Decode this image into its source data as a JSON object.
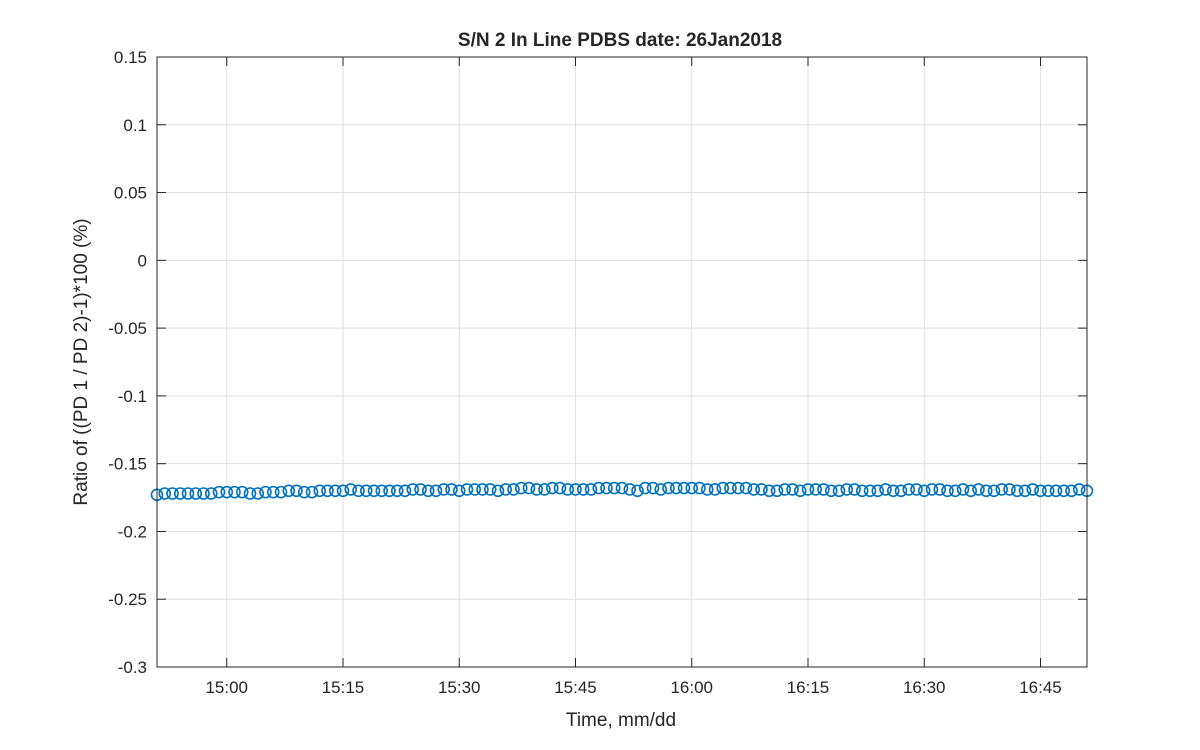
{
  "chart_data": {
    "type": "scatter",
    "title": "S/N 2 In Line PDBS date: 26Jan2018",
    "xlabel": "Time, mm/dd",
    "ylabel": "Ratio of ((PD 1 / PD 2)-1)*100 (%)",
    "xlim": [
      "14:51",
      "16:51"
    ],
    "ylim": [
      -0.3,
      0.15
    ],
    "grid": true,
    "marker": "open-circle",
    "marker_color": "#0072BD",
    "xticks": [
      "15:00",
      "15:15",
      "15:30",
      "15:45",
      "16:00",
      "16:15",
      "16:30",
      "16:45"
    ],
    "yticks": [
      "0.15",
      "0.1",
      "0.05",
      "0",
      "-0.05",
      "-0.1",
      "-0.15",
      "-0.2",
      "-0.25",
      "-0.3"
    ],
    "series": [
      {
        "x": [
          "14:51",
          "14:52",
          "14:53",
          "14:54",
          "14:55",
          "14:56",
          "14:57",
          "14:58",
          "14:59",
          "15:00",
          "15:01",
          "15:02",
          "15:03",
          "15:04",
          "15:05",
          "15:06",
          "15:07",
          "15:08",
          "15:09",
          "15:10",
          "15:11",
          "15:12",
          "15:13",
          "15:14",
          "15:15",
          "15:16",
          "15:17",
          "15:18",
          "15:19",
          "15:20",
          "15:21",
          "15:22",
          "15:23",
          "15:24",
          "15:25",
          "15:26",
          "15:27",
          "15:28",
          "15:29",
          "15:30",
          "15:31",
          "15:32",
          "15:33",
          "15:34",
          "15:35",
          "15:36",
          "15:37",
          "15:38",
          "15:39",
          "15:40",
          "15:41",
          "15:42",
          "15:43",
          "15:44",
          "15:45",
          "15:46",
          "15:47",
          "15:48",
          "15:49",
          "15:50",
          "15:51",
          "15:52",
          "15:53",
          "15:54",
          "15:55",
          "15:56",
          "15:57",
          "15:58",
          "15:59",
          "16:00",
          "16:01",
          "16:02",
          "16:03",
          "16:04",
          "16:05",
          "16:06",
          "16:07",
          "16:08",
          "16:09",
          "16:10",
          "16:11",
          "16:12",
          "16:13",
          "16:14",
          "16:15",
          "16:16",
          "16:17",
          "16:18",
          "16:19",
          "16:20",
          "16:21",
          "16:22",
          "16:23",
          "16:24",
          "16:25",
          "16:26",
          "16:27",
          "16:28",
          "16:29",
          "16:30",
          "16:31",
          "16:32",
          "16:33",
          "16:34",
          "16:35",
          "16:36",
          "16:37",
          "16:38",
          "16:39",
          "16:40",
          "16:41",
          "16:42",
          "16:43",
          "16:44",
          "16:45",
          "16:46",
          "16:47",
          "16:48",
          "16:49",
          "16:50",
          "16:51"
        ],
        "y": [
          -0.173,
          -0.172,
          -0.172,
          -0.172,
          -0.172,
          -0.172,
          -0.172,
          -0.172,
          -0.171,
          -0.171,
          -0.171,
          -0.171,
          -0.172,
          -0.172,
          -0.171,
          -0.171,
          -0.171,
          -0.17,
          -0.17,
          -0.171,
          -0.171,
          -0.17,
          -0.17,
          -0.17,
          -0.17,
          -0.169,
          -0.17,
          -0.17,
          -0.17,
          -0.17,
          -0.17,
          -0.17,
          -0.17,
          -0.169,
          -0.169,
          -0.17,
          -0.17,
          -0.169,
          -0.169,
          -0.17,
          -0.169,
          -0.169,
          -0.169,
          -0.169,
          -0.17,
          -0.169,
          -0.169,
          -0.168,
          -0.168,
          -0.169,
          -0.169,
          -0.168,
          -0.168,
          -0.169,
          -0.169,
          -0.169,
          -0.169,
          -0.168,
          -0.168,
          -0.168,
          -0.168,
          -0.169,
          -0.17,
          -0.168,
          -0.168,
          -0.169,
          -0.168,
          -0.168,
          -0.168,
          -0.168,
          -0.168,
          -0.169,
          -0.169,
          -0.168,
          -0.168,
          -0.168,
          -0.168,
          -0.169,
          -0.169,
          -0.17,
          -0.17,
          -0.169,
          -0.169,
          -0.17,
          -0.169,
          -0.169,
          -0.169,
          -0.17,
          -0.17,
          -0.169,
          -0.169,
          -0.17,
          -0.17,
          -0.17,
          -0.169,
          -0.17,
          -0.17,
          -0.169,
          -0.169,
          -0.17,
          -0.169,
          -0.169,
          -0.17,
          -0.17,
          -0.169,
          -0.17,
          -0.169,
          -0.17,
          -0.17,
          -0.169,
          -0.169,
          -0.17,
          -0.17,
          -0.169,
          -0.17,
          -0.17,
          -0.17,
          -0.17,
          -0.17,
          -0.169,
          -0.17
        ]
      }
    ]
  }
}
